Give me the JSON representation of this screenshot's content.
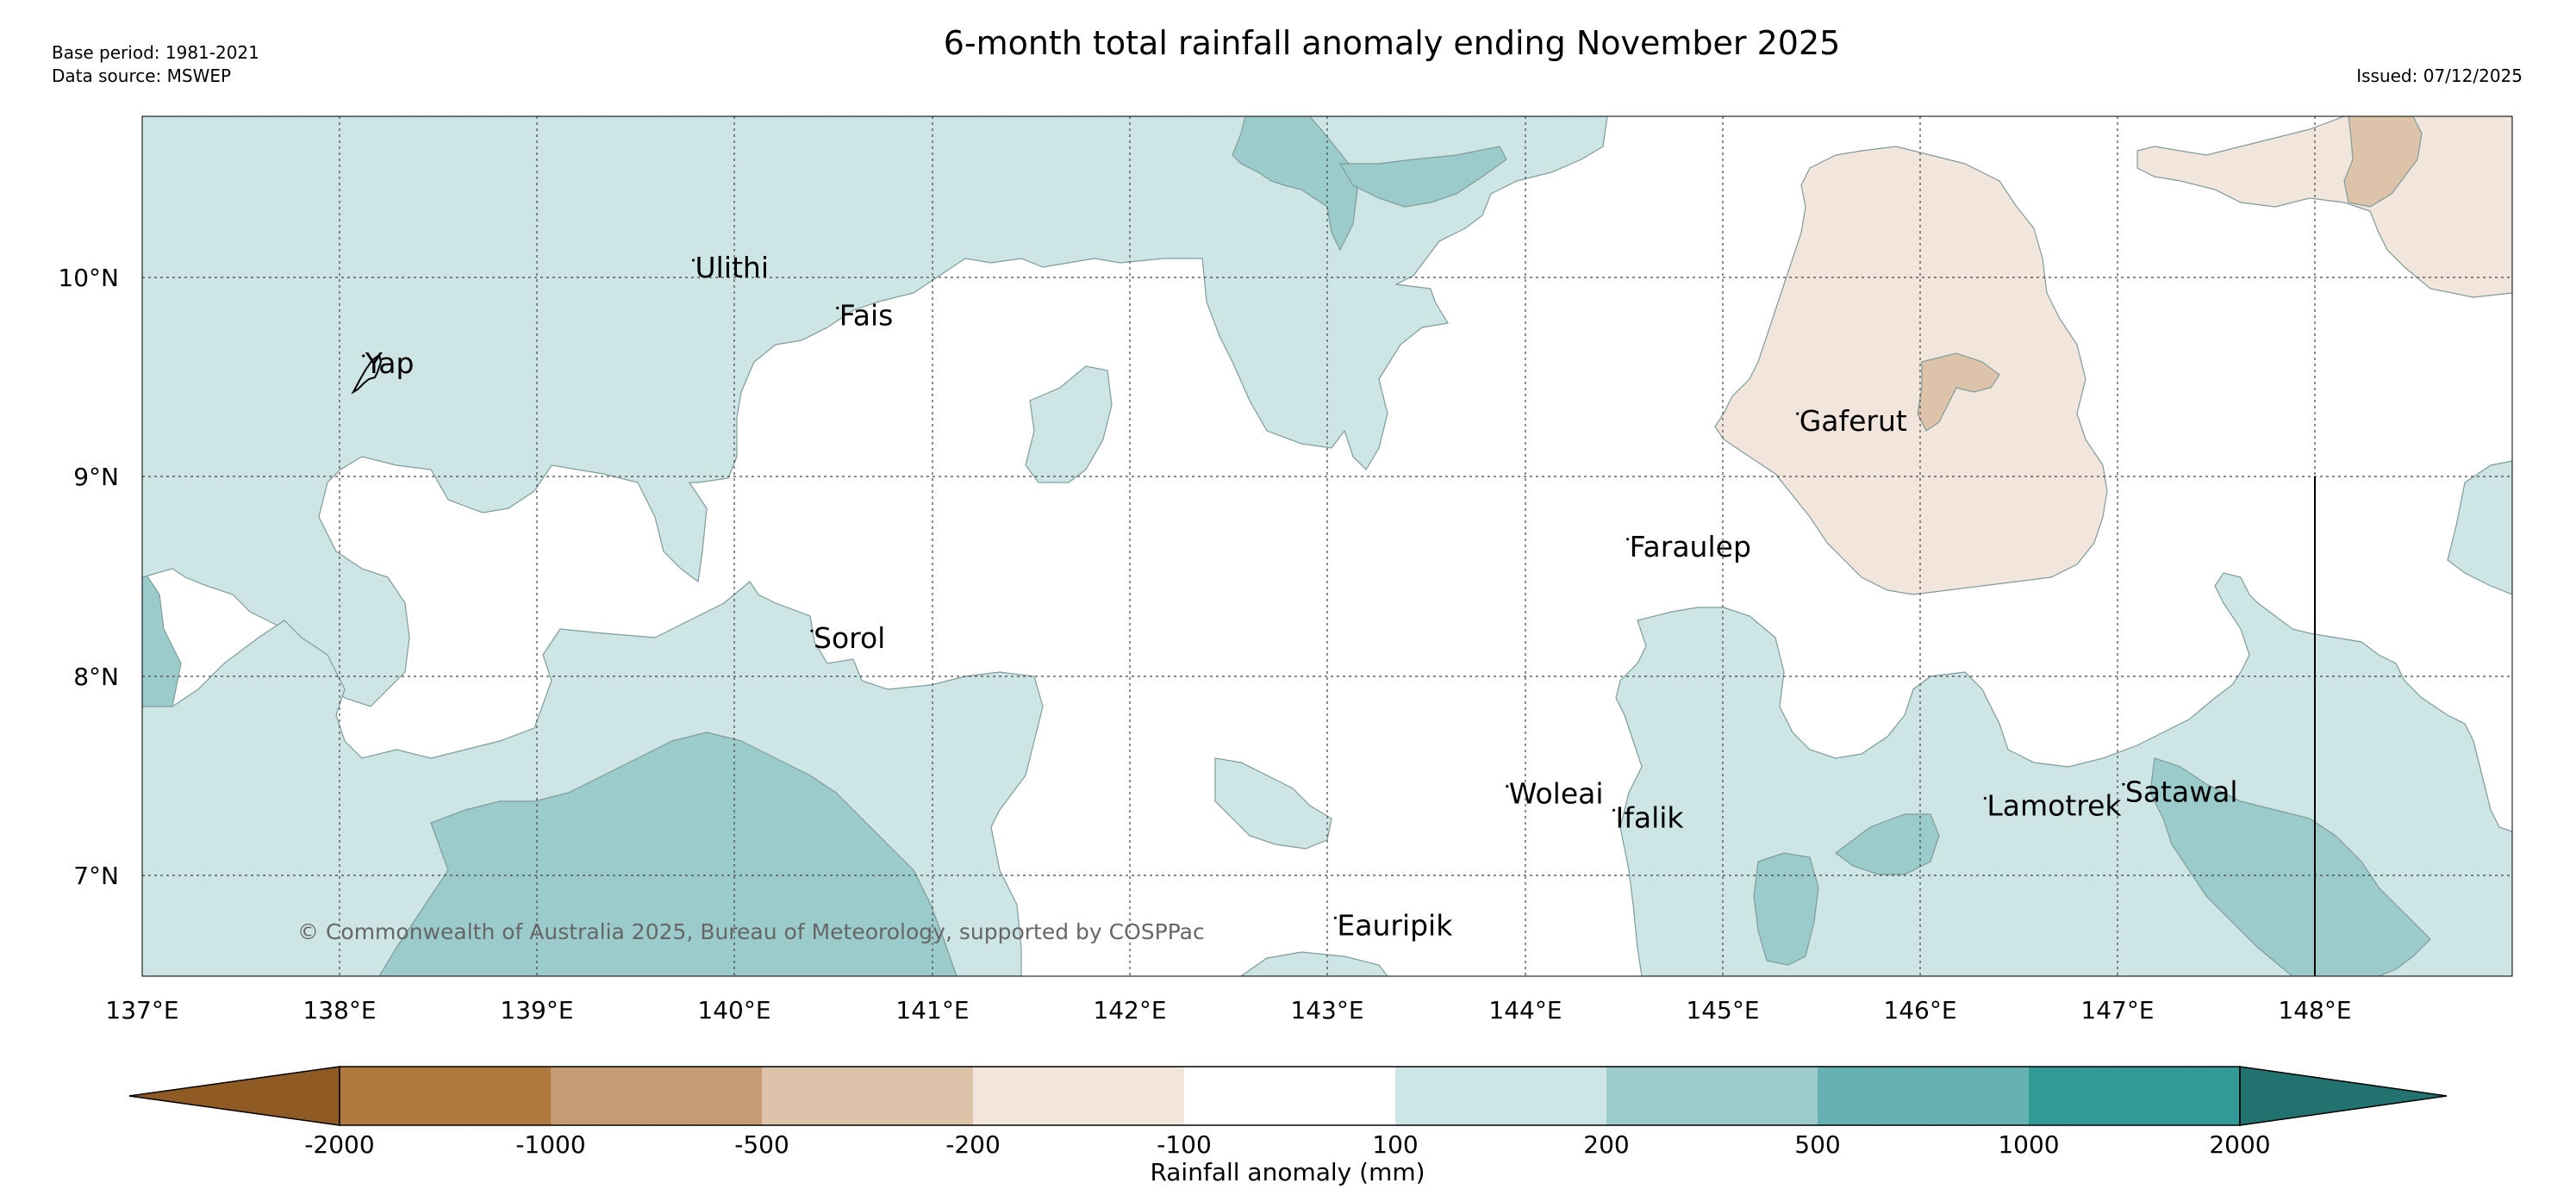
{
  "header": {
    "base_period": "Base period: 1981-2021",
    "data_source": "Data source: MSWEP",
    "title": "6-month total rainfall anomaly ending November 2025",
    "issued": "Issued: 07/12/2025"
  },
  "map": {
    "lat_labels": [
      "10°N",
      "9°N",
      "8°N",
      "7°N"
    ],
    "lon_labels": [
      "137°E",
      "138°E",
      "139°E",
      "140°E",
      "141°E",
      "142°E",
      "143°E",
      "144°E",
      "145°E",
      "146°E",
      "147°E",
      "148°E"
    ],
    "places": [
      {
        "name": "Ulithi",
        "lon": 139.79,
        "lat": 10.0
      },
      {
        "name": "Fais",
        "lon": 140.52,
        "lat": 9.76
      },
      {
        "name": "Yap",
        "lon": 138.12,
        "lat": 9.52
      },
      {
        "name": "Gaferut",
        "lon": 145.38,
        "lat": 9.23
      },
      {
        "name": "Faraulep",
        "lon": 144.52,
        "lat": 8.6
      },
      {
        "name": "Sorol",
        "lon": 140.39,
        "lat": 8.14
      },
      {
        "name": "Woleai",
        "lon": 143.91,
        "lat": 7.36
      },
      {
        "name": "Ifalik",
        "lon": 144.45,
        "lat": 7.24
      },
      {
        "name": "Lamotrek",
        "lon": 146.33,
        "lat": 7.3
      },
      {
        "name": "Satawal",
        "lon": 147.03,
        "lat": 7.37
      },
      {
        "name": "Eauripik",
        "lon": 143.04,
        "lat": 6.7
      }
    ],
    "copyright": "© Commonwealth of Australia 2025, Bureau of Meteorology, supported by COSPPac"
  },
  "colorbar": {
    "tick_labels": [
      "-2000",
      "-1000",
      "-500",
      "-200",
      "-100",
      "100",
      "200",
      "500",
      "1000",
      "2000"
    ],
    "colors": [
      "#8f5a24",
      "#b07a3e",
      "#c69c74",
      "#dec3ab",
      "#f2e6dc",
      "#ffffff",
      "#cde5e4",
      "#9bcbcb",
      "#66b1b1",
      "#329b97",
      "#22726f"
    ],
    "label": "Rainfall anomaly (mm)"
  },
  "colors": {
    "tan_light": "#f2e6dc",
    "tan_mid": "#dec3ab",
    "teal_light": "#cde5e4",
    "teal_mid": "#9bcbcb",
    "teal_dark": "#66b1b1"
  }
}
